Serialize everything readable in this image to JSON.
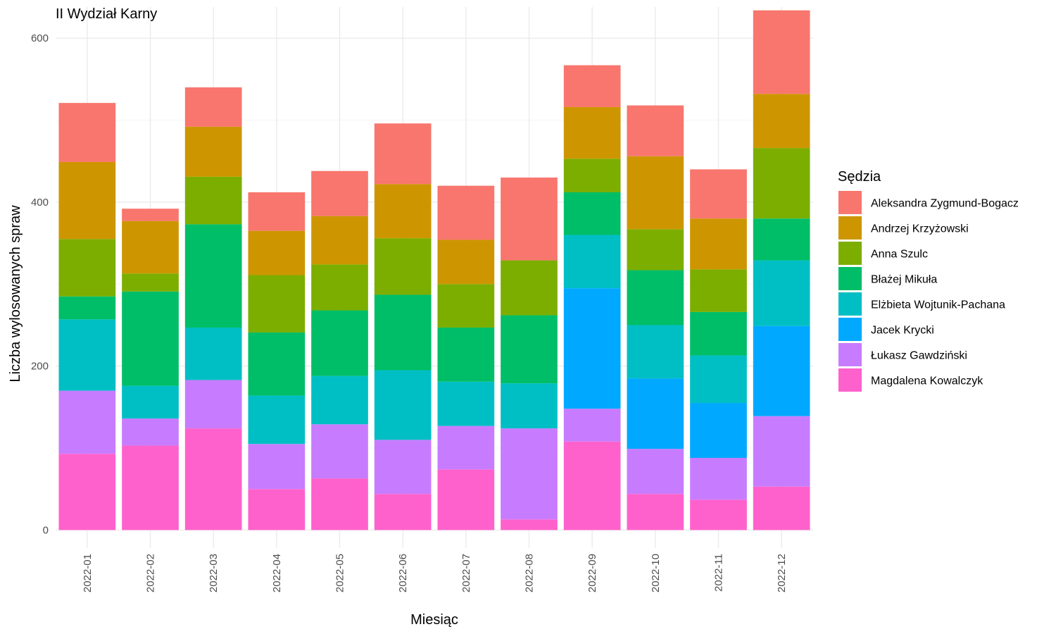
{
  "chart_data": {
    "type": "bar",
    "stacked": true,
    "title": "II Wydział Karny",
    "xlabel": "Miesiąc",
    "ylabel": "Liczba wylosowanych spraw",
    "ylim": [
      -22,
      638
    ],
    "yticks": [
      0,
      200,
      400,
      600
    ],
    "grid": true,
    "legend_title": "Sędzia",
    "legend_position": "right",
    "categories": [
      "2022-01",
      "2022-02",
      "2022-03",
      "2022-04",
      "2022-05",
      "2022-06",
      "2022-07",
      "2022-08",
      "2022-09",
      "2022-10",
      "2022-11",
      "2022-12"
    ],
    "series": [
      {
        "name": "Magdalena Kowalczyk",
        "color": "#FF61CC",
        "values": [
          93,
          103,
          124,
          50,
          63,
          44,
          74,
          13,
          108,
          44,
          37,
          53
        ]
      },
      {
        "name": "Łukasz Gawdziński",
        "color": "#C77CFF",
        "values": [
          77,
          33,
          59,
          55,
          66,
          66,
          53,
          111,
          40,
          55,
          51,
          86
        ]
      },
      {
        "name": "Jacek Krycki",
        "color": "#00A9FF",
        "values": [
          0,
          0,
          0,
          0,
          0,
          0,
          0,
          0,
          147,
          86,
          67,
          110
        ]
      },
      {
        "name": "Elżbieta Wojtunik-Pachana",
        "color": "#00BFC4",
        "values": [
          87,
          40,
          64,
          59,
          59,
          85,
          54,
          55,
          65,
          65,
          58,
          80
        ]
      },
      {
        "name": "Błażej Mikuła",
        "color": "#00BE67",
        "values": [
          28,
          115,
          126,
          77,
          80,
          92,
          66,
          83,
          52,
          67,
          53,
          51
        ]
      },
      {
        "name": "Anna Szulc",
        "color": "#7CAE00",
        "values": [
          70,
          22,
          58,
          70,
          56,
          69,
          53,
          67,
          41,
          50,
          52,
          86
        ]
      },
      {
        "name": "Andrzej Krzyżowski",
        "color": "#CD9600",
        "values": [
          94,
          64,
          61,
          54,
          59,
          66,
          54,
          0,
          63,
          89,
          62,
          66
        ]
      },
      {
        "name": "Aleksandra Zygmund-Bogacz",
        "color": "#F8766D",
        "values": [
          72,
          15,
          48,
          47,
          55,
          74,
          66,
          101,
          51,
          62,
          60,
          102
        ]
      }
    ]
  }
}
